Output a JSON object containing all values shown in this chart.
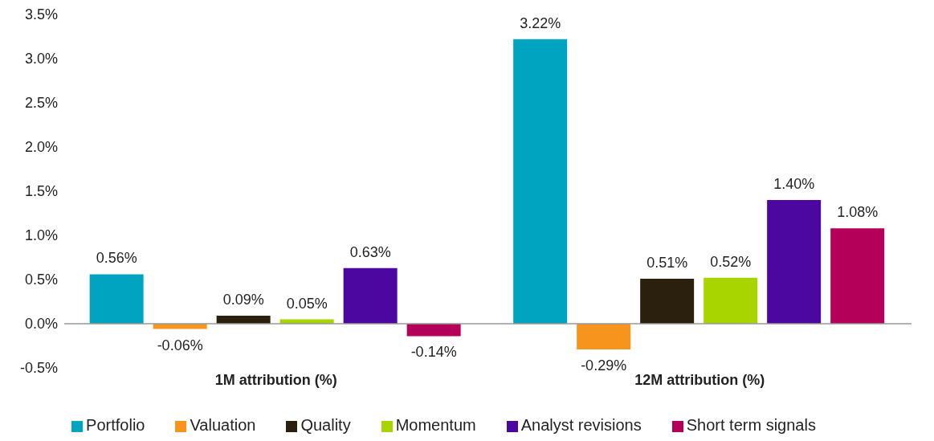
{
  "chart_data": {
    "type": "bar",
    "categories": [
      "1M attribution (%)",
      "12M attribution (%)"
    ],
    "series": [
      {
        "name": "Portfolio",
        "color": "#00a3c0",
        "values": [
          0.56,
          3.22
        ],
        "value_labels": [
          "0.56%",
          "3.22%"
        ]
      },
      {
        "name": "Valuation",
        "color": "#f7941d",
        "values": [
          -0.06,
          -0.29
        ],
        "value_labels": [
          "-0.06%",
          "-0.29%"
        ]
      },
      {
        "name": "Quality",
        "color": "#2b1f0e",
        "values": [
          0.09,
          0.51
        ],
        "value_labels": [
          "0.09%",
          "0.51%"
        ]
      },
      {
        "name": "Momentum",
        "color": "#a8d500",
        "values": [
          0.05,
          0.52
        ],
        "value_labels": [
          "0.05%",
          "0.52%"
        ]
      },
      {
        "name": "Analyst revisions",
        "color": "#4b07a0",
        "values": [
          0.63,
          1.4
        ],
        "value_labels": [
          "0.63%",
          "1.40%"
        ]
      },
      {
        "name": "Short term signals",
        "color": "#b5005a",
        "values": [
          -0.14,
          1.08
        ],
        "value_labels": [
          "-0.14%",
          "1.08%"
        ]
      }
    ],
    "ylim": [
      -0.5,
      3.5
    ],
    "yticks": [
      {
        "value": -0.5,
        "label": "-0.5%"
      },
      {
        "value": 0,
        "label": "0.0%"
      },
      {
        "value": 0.5,
        "label": "0.5%"
      },
      {
        "value": 1,
        "label": "1.0%"
      },
      {
        "value": 1.5,
        "label": "1.5%"
      },
      {
        "value": 2,
        "label": "2.0%"
      },
      {
        "value": 2.5,
        "label": "2.5%"
      },
      {
        "value": 3,
        "label": "3.0%"
      },
      {
        "value": 3.5,
        "label": "3.5%"
      }
    ],
    "ref_lines": [
      {
        "axis": "y",
        "value": 0,
        "color": "#999999"
      }
    ],
    "grid": false,
    "legend": "bottom"
  }
}
